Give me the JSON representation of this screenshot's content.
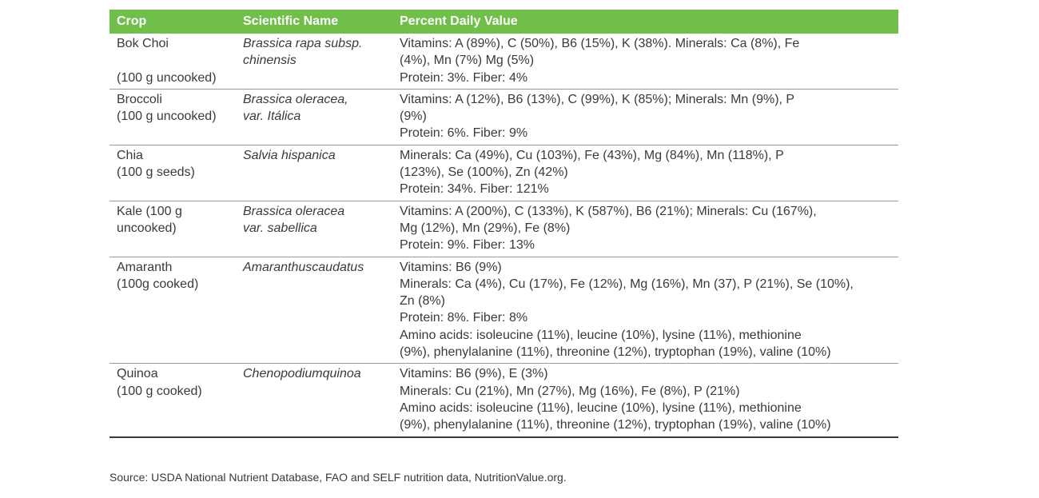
{
  "table": {
    "headers": [
      "Crop",
      "Scientific Name",
      "Percent Daily Value"
    ],
    "rows": [
      {
        "crop": [
          "Bok Choi",
          "",
          "(100 g uncooked)"
        ],
        "scientific": [
          "Brassica rapa subsp.",
          "chinensis"
        ],
        "value": [
          "Vitamins: A (89%), C (50%), B6 (15%), K (38%). Minerals: Ca (8%), Fe",
          "(4%), Mn (7%) Mg (5%)",
          "Protein: 3%. Fiber: 4%"
        ]
      },
      {
        "crop": [
          "Broccoli",
          "(100 g uncooked)"
        ],
        "scientific": [
          "Brassica oleracea,",
          "var. Itálica"
        ],
        "value": [
          "Vitamins: A (12%), B6 (13%), C (99%), K (85%); Minerals: Mn (9%), P",
          "(9%)",
          "Protein: 6%. Fiber: 9%"
        ]
      },
      {
        "crop": [
          "Chia",
          "(100 g seeds)"
        ],
        "scientific": [
          "Salvia hispanica"
        ],
        "value": [
          "Minerals: Ca (49%), Cu (103%), Fe (43%), Mg (84%), Mn (118%), P",
          "(123%), Se (100%), Zn (42%)",
          "Protein: 34%. Fiber: 121%"
        ]
      },
      {
        "crop": [
          "Kale (100 g",
          "uncooked)"
        ],
        "scientific": [
          "Brassica oleracea",
          "var. sabellica"
        ],
        "value": [
          "Vitamins: A (200%), C (133%), K (587%), B6 (21%); Minerals: Cu (167%),",
          "Mg (12%), Mn (29%), Fe (8%)",
          "Protein: 9%. Fiber: 13%"
        ]
      },
      {
        "crop": [
          "Amaranth",
          "(100g cooked)"
        ],
        "scientific": [
          "Amaranthuscaudatus"
        ],
        "value": [
          "Vitamins: B6 (9%)",
          "Minerals: Ca (4%), Cu (17%), Fe (12%), Mg (16%), Mn (37), P (21%), Se (10%),",
          "Zn (8%)",
          "Protein: 8%. Fiber: 8%",
          "Amino acids: isoleucine (11%), leucine (10%), lysine (11%), methionine",
          "(9%), phenylalanine (11%), threonine (12%), tryptophan (19%), valine (10%)"
        ]
      },
      {
        "crop": [
          "Quinoa",
          "(100 g cooked)"
        ],
        "scientific": [
          "Chenopodiumquinoa"
        ],
        "value": [
          "Vitamins: B6 (9%), E (3%)",
          "Minerals: Cu (21%), Mn (27%), Mg (16%), Fe (8%), P (21%)",
          "Amino acids: isoleucine (11%), leucine (10%), lysine (11%), methionine",
          "(9%), phenylalanine (11%), threonine (12%), tryptophan (19%), valine (10%)"
        ]
      }
    ]
  },
  "source": "Source: USDA National Nutrient Database, FAO and SELF nutrition data, NutritionValue.org.",
  "colors": {
    "header_bg": "#6fbf4a",
    "header_text": "#ffffff",
    "body_text": "#3a3a3a"
  }
}
